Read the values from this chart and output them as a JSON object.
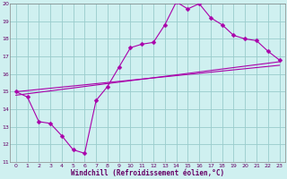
{
  "bg_color": "#cff0f0",
  "grid_color": "#99cccc",
  "line_color": "#aa00aa",
  "marker_color": "#aa00aa",
  "xlabel": "Windchill (Refroidissement éolien,°C)",
  "xlabel_color": "#660066",
  "xlim": [
    -0.5,
    23.5
  ],
  "ylim": [
    11,
    20
  ],
  "yticks": [
    11,
    12,
    13,
    14,
    15,
    16,
    17,
    18,
    19,
    20
  ],
  "xticks": [
    0,
    1,
    2,
    3,
    4,
    5,
    6,
    7,
    8,
    9,
    10,
    11,
    12,
    13,
    14,
    15,
    16,
    17,
    18,
    19,
    20,
    21,
    22,
    23
  ],
  "curve_x": [
    0,
    1,
    2,
    3,
    4,
    5,
    6,
    7,
    8,
    9,
    10,
    11,
    12,
    13,
    14,
    15,
    16,
    17,
    18,
    19,
    20,
    21,
    22,
    23
  ],
  "curve_y": [
    15.0,
    14.7,
    13.3,
    13.2,
    12.5,
    11.7,
    11.5,
    14.5,
    15.3,
    16.4,
    17.5,
    17.7,
    17.8,
    18.8,
    20.1,
    19.7,
    20.0,
    19.2,
    18.8,
    18.2,
    18.0,
    17.9,
    17.3,
    16.8
  ],
  "line2_x": [
    0,
    23
  ],
  "line2_y": [
    14.8,
    16.7
  ],
  "line3_x": [
    0,
    23
  ],
  "line3_y": [
    15.0,
    16.5
  ]
}
